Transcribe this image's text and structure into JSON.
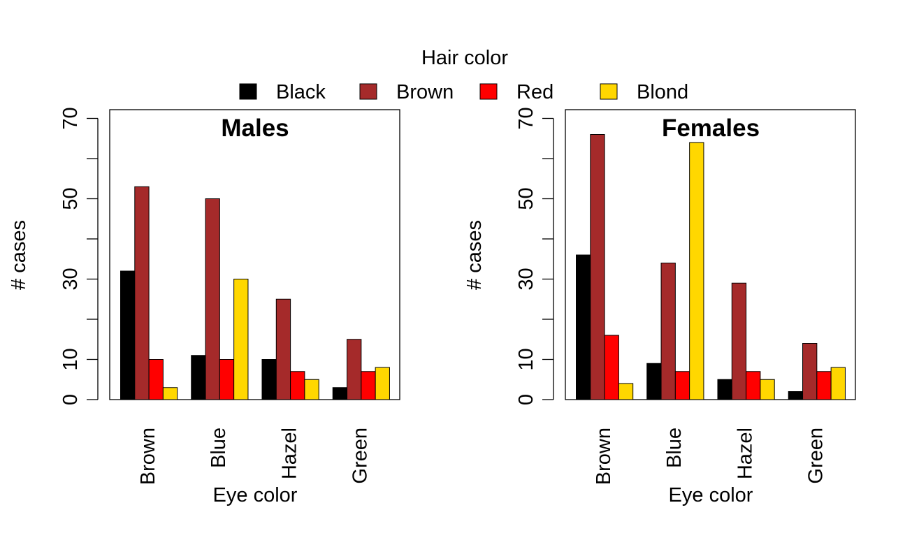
{
  "legend": {
    "title": "Hair color",
    "placement": "top-center",
    "items": [
      {
        "label": "Black",
        "color": "#000000"
      },
      {
        "label": "Brown",
        "color": "#A52A2A"
      },
      {
        "label": "Red",
        "color": "#FF0000"
      },
      {
        "label": "Blond",
        "color": "#FFD700"
      }
    ]
  },
  "chart_data": [
    {
      "type": "bar",
      "title": "Males",
      "xlabel": "Eye color",
      "ylabel": "# cases",
      "ylim": [
        0,
        70
      ],
      "yticks": [
        0,
        10,
        30,
        50,
        70
      ],
      "grid": false,
      "categories": [
        "Brown",
        "Blue",
        "Hazel",
        "Green"
      ],
      "series": [
        {
          "name": "Black",
          "values": [
            32,
            11,
            10,
            3
          ]
        },
        {
          "name": "Brown",
          "values": [
            53,
            50,
            25,
            15
          ]
        },
        {
          "name": "Red",
          "values": [
            10,
            10,
            7,
            7
          ]
        },
        {
          "name": "Blond",
          "values": [
            3,
            30,
            5,
            8
          ]
        }
      ]
    },
    {
      "type": "bar",
      "title": "Females",
      "xlabel": "Eye color",
      "ylabel": "# cases",
      "ylim": [
        0,
        70
      ],
      "yticks": [
        0,
        10,
        30,
        50,
        70
      ],
      "grid": false,
      "categories": [
        "Brown",
        "Blue",
        "Hazel",
        "Green"
      ],
      "series": [
        {
          "name": "Black",
          "values": [
            36,
            9,
            5,
            2
          ]
        },
        {
          "name": "Brown",
          "values": [
            66,
            34,
            29,
            14
          ]
        },
        {
          "name": "Red",
          "values": [
            16,
            7,
            7,
            7
          ]
        },
        {
          "name": "Blond",
          "values": [
            4,
            64,
            5,
            8
          ]
        }
      ]
    }
  ]
}
